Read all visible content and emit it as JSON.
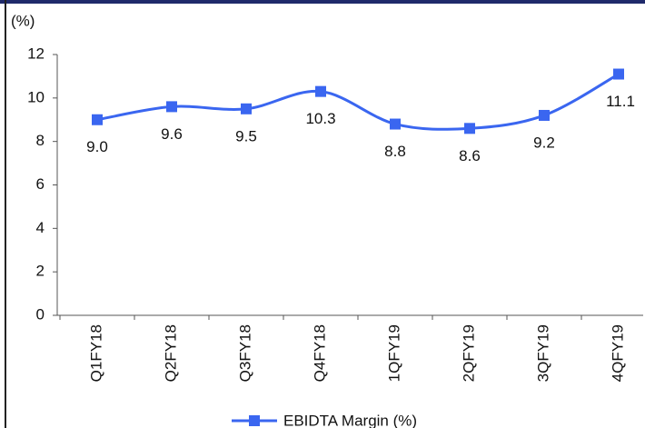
{
  "chart_data": {
    "type": "line",
    "y_label": "(%)",
    "categories": [
      "Q1FY18",
      "Q2FY18",
      "Q3FY18",
      "Q4FY18",
      "1QFY19",
      "2QFY19",
      "3QFY19",
      "4QFY19"
    ],
    "series": [
      {
        "name": "EBIDTA Margin (%)",
        "color": "#3a66f0",
        "values": [
          9.0,
          9.6,
          9.5,
          10.3,
          8.8,
          8.6,
          9.2,
          11.1
        ],
        "value_labels": [
          "9.0",
          "9.6",
          "9.5",
          "10.3",
          "8.8",
          "8.6",
          "9.2",
          "11.1"
        ]
      }
    ],
    "ylim": [
      0,
      12
    ],
    "yticks": [
      0,
      2,
      4,
      6,
      8,
      10,
      12
    ],
    "legend": "bottom"
  }
}
